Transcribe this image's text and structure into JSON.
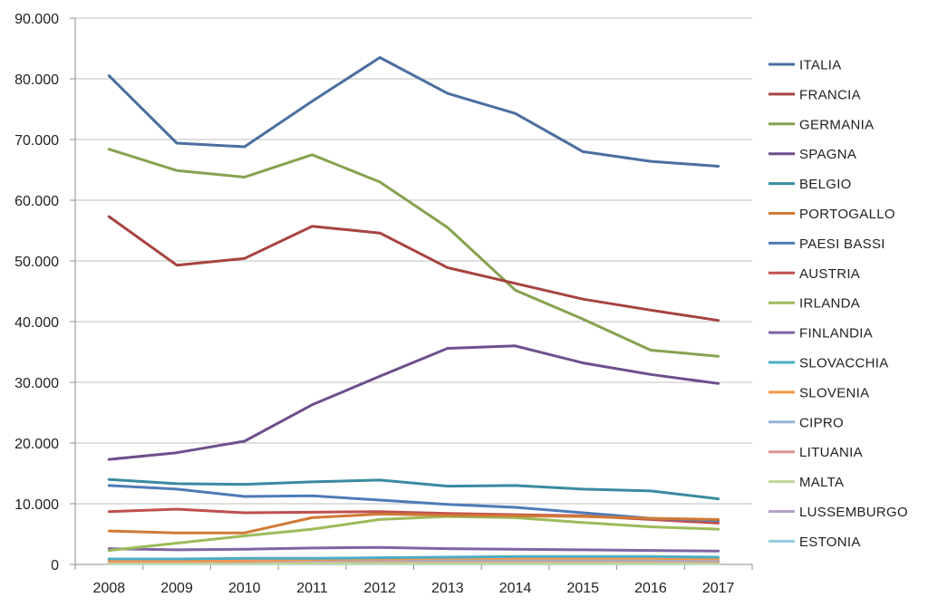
{
  "chart_data": {
    "type": "line",
    "title": "",
    "xlabel": "",
    "ylabel": "",
    "ylim": [
      0,
      90000
    ],
    "y_ticks": [
      0,
      10000,
      20000,
      30000,
      40000,
      50000,
      60000,
      70000,
      80000,
      90000
    ],
    "y_tick_labels": [
      "0",
      "10.000",
      "20.000",
      "30.000",
      "40.000",
      "50.000",
      "60.000",
      "70.000",
      "80.000",
      "90.000"
    ],
    "categories": [
      "2008",
      "2009",
      "2010",
      "2011",
      "2012",
      "2013",
      "2014",
      "2015",
      "2016",
      "2017"
    ],
    "grid": "horizontal",
    "legend_position": "right",
    "series": [
      {
        "name": "ITALIA",
        "color": "#4a6fa0",
        "values": [
          80500,
          69400,
          68800,
          76300,
          83500,
          77600,
          74300,
          68000,
          66400,
          65600
        ]
      },
      {
        "name": "FRANCIA",
        "color": "#a64340",
        "values": [
          57300,
          49300,
          50400,
          55700,
          54600,
          48900,
          46300,
          43700,
          41900,
          40200
        ]
      },
      {
        "name": "GERMANIA",
        "color": "#86a250",
        "values": [
          68400,
          64900,
          63800,
          67500,
          63000,
          55500,
          45200,
          40400,
          35300,
          34300
        ]
      },
      {
        "name": "SPAGNA",
        "color": "#6e4f8c",
        "values": [
          17300,
          18400,
          20300,
          26300,
          31000,
          35600,
          36000,
          33200,
          31300,
          29800
        ]
      },
      {
        "name": "BELGIO",
        "color": "#3a8aa0",
        "values": [
          14000,
          13300,
          13200,
          13600,
          13900,
          12900,
          13000,
          12400,
          12100,
          10800
        ]
      },
      {
        "name": "PORTOGALLO",
        "color": "#d07a36",
        "values": [
          5500,
          5200,
          5200,
          7700,
          8300,
          8100,
          8000,
          7900,
          7600,
          7400
        ]
      },
      {
        "name": "PAESI BASSI",
        "color": "#4f7bb8",
        "values": [
          13000,
          12400,
          11200,
          11300,
          10600,
          9900,
          9400,
          8500,
          7600,
          7200
        ]
      },
      {
        "name": "AUSTRIA",
        "color": "#c0504d",
        "values": [
          8700,
          9100,
          8500,
          8600,
          8700,
          8400,
          8200,
          8000,
          7400,
          6800
        ]
      },
      {
        "name": "IRLANDA",
        "color": "#9bbb59",
        "values": [
          2300,
          3500,
          4700,
          5800,
          7400,
          7900,
          7700,
          6900,
          6200,
          5800
        ]
      },
      {
        "name": "FINLANDIA",
        "color": "#8064a2",
        "values": [
          2600,
          2400,
          2500,
          2700,
          2800,
          2600,
          2500,
          2400,
          2300,
          2200
        ]
      },
      {
        "name": "SLOVACCHIA",
        "color": "#4bacc6",
        "values": [
          900,
          900,
          1000,
          1000,
          1100,
          1200,
          1300,
          1300,
          1300,
          1200
        ]
      },
      {
        "name": "SLOVENIA",
        "color": "#f79646",
        "values": [
          600,
          600,
          700,
          800,
          900,
          1000,
          1000,
          1000,
          1000,
          900
        ]
      },
      {
        "name": "CIPRO",
        "color": "#95b3d7",
        "values": [
          700,
          700,
          700,
          700,
          800,
          800,
          800,
          800,
          800,
          700
        ]
      },
      {
        "name": "LITUANIA",
        "color": "#d99694",
        "values": [
          500,
          500,
          500,
          600,
          600,
          600,
          600,
          600,
          600,
          500
        ]
      },
      {
        "name": "MALTA",
        "color": "#c3d69b",
        "values": [
          200,
          200,
          200,
          200,
          200,
          200,
          200,
          200,
          200,
          200
        ]
      },
      {
        "name": "LUSSEMBURGO",
        "color": "#b3a2c7",
        "values": [
          300,
          300,
          300,
          300,
          300,
          300,
          300,
          300,
          300,
          300
        ]
      },
      {
        "name": "ESTONIA",
        "color": "#92cddc",
        "values": [
          100,
          100,
          100,
          100,
          100,
          100,
          100,
          100,
          100,
          100
        ]
      }
    ]
  }
}
